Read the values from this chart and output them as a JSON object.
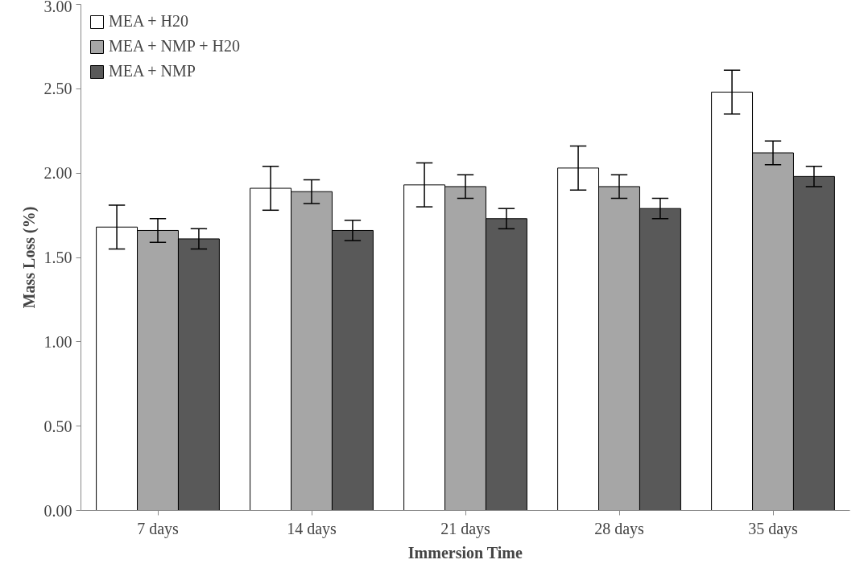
{
  "chart_data": {
    "type": "bar",
    "xlabel": "Immersion Time",
    "ylabel": "Mass Loss (%)",
    "categories": [
      "7 days",
      "14 days",
      "21 days",
      "28 days",
      "35 days"
    ],
    "series": [
      {
        "name": "MEA + H20",
        "color": "#ffffff",
        "values": [
          1.68,
          1.91,
          1.93,
          2.03,
          2.48
        ],
        "errors": [
          0.13,
          0.13,
          0.13,
          0.13,
          0.13
        ]
      },
      {
        "name": "MEA + NMP + H20",
        "color": "#a6a6a6",
        "values": [
          1.66,
          1.89,
          1.92,
          1.92,
          2.12
        ],
        "errors": [
          0.07,
          0.07,
          0.07,
          0.07,
          0.07
        ]
      },
      {
        "name": "MEA + NMP",
        "color": "#595959",
        "values": [
          1.61,
          1.66,
          1.73,
          1.79,
          1.98
        ],
        "errors": [
          0.06,
          0.06,
          0.06,
          0.06,
          0.06
        ]
      }
    ],
    "ylim": [
      0,
      3
    ],
    "yticks": [
      {
        "value": 0,
        "label": "0.00"
      },
      {
        "value": 0.5,
        "label": "0.50"
      },
      {
        "value": 1,
        "label": "1.00"
      },
      {
        "value": 1.5,
        "label": "1.50"
      },
      {
        "value": 2,
        "label": "2.00"
      },
      {
        "value": 2.5,
        "label": "2.50"
      },
      {
        "value": 3,
        "label": "3.00"
      }
    ],
    "grid": false,
    "legend": "top left"
  }
}
